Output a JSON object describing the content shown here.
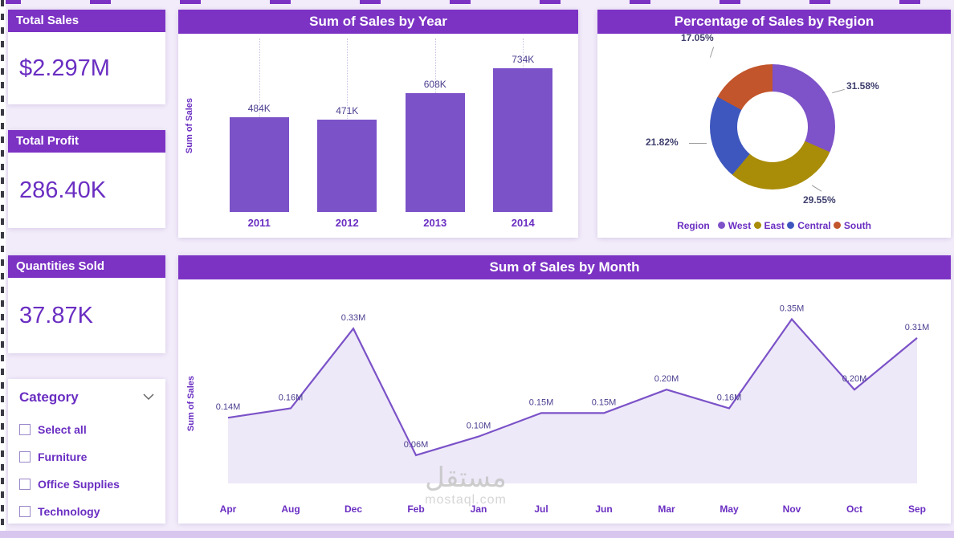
{
  "theme": {
    "purple": "#7C33C4",
    "bar_purple": "#7B52C8",
    "accent_text": "#6A2EC2",
    "background": "#F2ECFA"
  },
  "kpis": [
    {
      "title": "Total Sales",
      "value": "$2.297M"
    },
    {
      "title": "Total Profit",
      "value": "286.40K"
    },
    {
      "title": "Quantities Sold",
      "value": "37.87K"
    }
  ],
  "slicer": {
    "title": "Category",
    "options": [
      "Select all",
      "Furniture",
      "Office Supplies",
      "Technology"
    ]
  },
  "chart_data": [
    {
      "type": "bar",
      "title": "Sum of Sales by Year",
      "ylabel": "Sum of Sales",
      "categories": [
        "2011",
        "2012",
        "2013",
        "2014"
      ],
      "values": [
        484000,
        471000,
        608000,
        734000
      ],
      "labels": [
        "484K",
        "471K",
        "608K",
        "734K"
      ],
      "ylim": [
        0,
        800000
      ],
      "bar_color": "#7B52C8"
    },
    {
      "type": "pie",
      "title": "Percentage of Sales by Region",
      "legend_title": "Region",
      "slices": [
        {
          "name": "West",
          "value": 31.58,
          "label": "31.58%",
          "color": "#7E52C8"
        },
        {
          "name": "East",
          "value": 29.55,
          "label": "29.55%",
          "color": "#A98C07"
        },
        {
          "name": "Central",
          "value": 21.82,
          "label": "21.82%",
          "color": "#3E57BE"
        },
        {
          "name": "South",
          "value": 17.05,
          "label": "17.05%",
          "color": "#C2552B"
        }
      ]
    },
    {
      "type": "area",
      "title": "Sum of Sales by Month",
      "ylabel": "Sum of Sales",
      "categories": [
        "Apr",
        "Aug",
        "Dec",
        "Feb",
        "Jan",
        "Jul",
        "Jun",
        "Mar",
        "May",
        "Nov",
        "Oct",
        "Sep"
      ],
      "values": [
        0.14,
        0.16,
        0.33,
        0.06,
        0.1,
        0.15,
        0.15,
        0.2,
        0.16,
        0.35,
        0.2,
        0.31
      ],
      "labels": [
        "0.14M",
        "0.16M",
        "0.33M",
        "0.06M",
        "0.10M",
        "0.15M",
        "0.15M",
        "0.20M",
        "0.16M",
        "0.35M",
        "0.20M",
        "0.31M"
      ],
      "ylim": [
        0,
        0.38
      ],
      "line_color": "#7B52C8"
    }
  ],
  "watermark": {
    "line1": "مستقل",
    "line2": "mostaql.com"
  }
}
